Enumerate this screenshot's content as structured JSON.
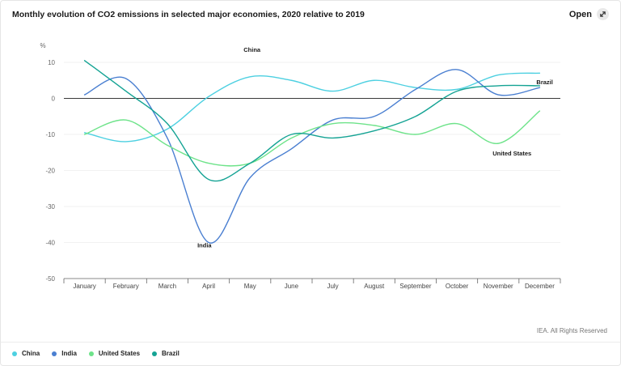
{
  "header": {
    "title": "Monthly evolution of CO2 emissions in selected major economies, 2020 relative to 2019",
    "open_label": "Open",
    "open_icon": "expand-arrows-icon"
  },
  "footer": {
    "credit": "IEA. All Rights Reserved"
  },
  "chart_data": {
    "type": "line",
    "title": "Monthly evolution of CO2 emissions in selected major economies, 2020 relative to 2019",
    "xlabel": "",
    "ylabel": "%",
    "ylim": [
      -50,
      10
    ],
    "yticks": [
      10,
      0,
      -10,
      -20,
      -30,
      -40,
      -50
    ],
    "grid": true,
    "legend_position": "bottom-left",
    "categories": [
      "January",
      "February",
      "March",
      "April",
      "May",
      "June",
      "July",
      "August",
      "September",
      "October",
      "November",
      "December"
    ],
    "series": [
      {
        "name": "China",
        "color": "#4dd0e1",
        "values": [
          -9.5,
          -12,
          -8.5,
          0.5,
          6,
          5,
          2,
          5,
          3,
          2.5,
          6.5,
          7
        ],
        "annotation": "China",
        "annotation_month": "May"
      },
      {
        "name": "India",
        "color": "#4a7fd1",
        "values": [
          1,
          5.5,
          -11,
          -40,
          -22,
          -14,
          -6,
          -5,
          2.5,
          8,
          1,
          3
        ],
        "annotation": "India",
        "annotation_month": "April"
      },
      {
        "name": "United States",
        "color": "#6ee38a",
        "values": [
          -10,
          -6,
          -13,
          -18,
          -18,
          -11,
          -7,
          -7.5,
          -10,
          -7,
          -12.5,
          -3.5
        ],
        "annotation": "United States",
        "annotation_month": "November"
      },
      {
        "name": "Brazil",
        "color": "#15a394",
        "values": [
          10.5,
          2,
          -7,
          -22.5,
          -18,
          -10,
          -11,
          -9,
          -5,
          2,
          3.5,
          3.5
        ],
        "annotation": "Brazil",
        "annotation_month": "December"
      }
    ]
  }
}
